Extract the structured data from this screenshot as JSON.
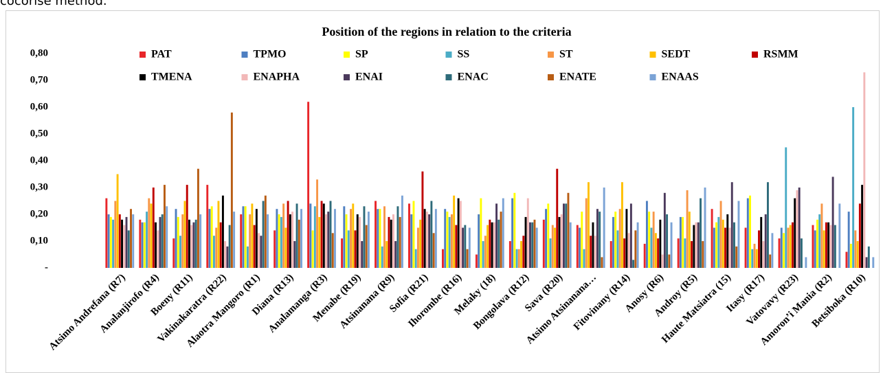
{
  "caption_fragment": "cocorise method.",
  "chart_data": {
    "type": "bar",
    "title": "Position of the regions in relation to the criteria",
    "categories": [
      "Atsimo Andrefana (R7)",
      "Analanjirofo (R4)",
      "Boeny (R11)",
      "Vakinakaratra (R22)",
      "Alaotra Mangoro (R1)",
      "Diana (R13)",
      "Analamanga (R3)",
      "Menabe (R19)",
      "Atsinanana (R9)",
      "Sofia (R21)",
      "Ihorombe (R16)",
      "Melaky (18)",
      "Bongolava (R12)",
      "Sava (R20)",
      "Atsimo Atsinanana…",
      "Fitovinany (R14)",
      "Anosy (R6)",
      "Androy (R5)",
      "Haute Matsiatra (15)",
      "Itasy (R17)",
      "Vatovavy (R23)",
      "Amoron’i Mania (R2)",
      "Betsiboka (R10)"
    ],
    "series": [
      {
        "name": "PAT",
        "color": "#e8262a",
        "values": [
          0.26,
          0.18,
          0.11,
          0.31,
          0.2,
          0.14,
          0.62,
          0.11,
          0.25,
          0.24,
          0.07,
          0.05,
          0.1,
          0.18,
          0.16,
          0.1,
          0.09,
          0.11,
          0.22,
          0.15,
          0.11,
          0.16,
          0.06
        ]
      },
      {
        "name": "TPMO",
        "color": "#4e7fc1",
        "values": [
          0.2,
          0.17,
          0.22,
          0.22,
          0.23,
          0.22,
          0.24,
          0.23,
          0.22,
          0.2,
          0.22,
          0.2,
          0.26,
          0.22,
          0.15,
          0.19,
          0.25,
          0.19,
          0.15,
          0.26,
          0.15,
          0.14,
          0.21
        ]
      },
      {
        "name": "SP",
        "color": "#ffff00",
        "values": [
          0.19,
          0.17,
          0.19,
          0.23,
          0.23,
          0.2,
          0.14,
          0.2,
          0.22,
          0.25,
          0.21,
          0.26,
          0.28,
          0.24,
          0.21,
          0.21,
          0.21,
          0.19,
          0.17,
          0.27,
          0.13,
          0.18,
          0.09
        ]
      },
      {
        "name": "SS",
        "color": "#4bacc6",
        "values": [
          0.18,
          0.21,
          0.12,
          0.12,
          0.08,
          0.19,
          0.23,
          0.14,
          0.08,
          0.07,
          0.19,
          0.1,
          0.07,
          0.11,
          0.07,
          0.14,
          0.15,
          0.11,
          0.19,
          0.07,
          0.45,
          0.2,
          0.6
        ]
      },
      {
        "name": "ST",
        "color": "#f79646",
        "values": [
          0.25,
          0.26,
          0.2,
          0.15,
          0.2,
          0.24,
          0.33,
          0.22,
          0.23,
          0.15,
          0.2,
          0.12,
          0.07,
          0.16,
          0.26,
          0.22,
          0.21,
          0.29,
          0.25,
          0.09,
          0.15,
          0.24,
          0.14
        ]
      },
      {
        "name": "SEDT",
        "color": "#ffc000",
        "values": [
          0.35,
          0.24,
          0.25,
          0.25,
          0.24,
          0.15,
          0.19,
          0.24,
          0.1,
          0.18,
          0.27,
          0.16,
          0.1,
          0.15,
          0.32,
          0.32,
          0.13,
          0.21,
          0.18,
          0.07,
          0.16,
          0.14,
          0.1
        ]
      },
      {
        "name": "RSMM",
        "color": "#c00000",
        "values": [
          0.2,
          0.3,
          0.31,
          0.17,
          0.16,
          0.25,
          0.25,
          0.14,
          0.19,
          0.36,
          0.16,
          0.18,
          0.12,
          0.37,
          0.12,
          0.11,
          0.11,
          0.1,
          0.15,
          0.14,
          0.17,
          0.17,
          0.24
        ]
      },
      {
        "name": "TMENA",
        "color": "#000000",
        "values": [
          0.18,
          0.17,
          0.18,
          0.27,
          0.22,
          0.2,
          0.24,
          0.2,
          0.18,
          0.22,
          0.26,
          0.17,
          0.19,
          0.19,
          0.17,
          0.22,
          0.18,
          0.16,
          0.2,
          0.19,
          0.26,
          0.17,
          0.31
        ]
      },
      {
        "name": "ENAPHA",
        "color": "#f2b8b8",
        "values": [
          0.16,
          0.14,
          0.16,
          0.1,
          0.13,
          0.21,
          0.2,
          0.19,
          0.2,
          0.21,
          0.25,
          0.17,
          0.26,
          0.2,
          0.12,
          0.13,
          0.05,
          0.17,
          0.15,
          0.1,
          0.29,
          0.16,
          0.73
        ]
      },
      {
        "name": "ENAI",
        "color": "#4b3a5c",
        "values": [
          0.19,
          0.19,
          0.17,
          0.08,
          0.12,
          0.1,
          0.21,
          0.1,
          0.1,
          0.2,
          0.15,
          0.24,
          0.17,
          0.24,
          0.22,
          0.24,
          0.28,
          0.17,
          0.32,
          0.2,
          0.3,
          0.34,
          0.04
        ]
      },
      {
        "name": "ENAC",
        "color": "#2e6b7a",
        "values": [
          0.14,
          0.2,
          0.18,
          0.16,
          0.25,
          0.24,
          0.25,
          0.23,
          0.23,
          0.25,
          0.16,
          0.18,
          0.17,
          0.24,
          0.21,
          0.03,
          0.2,
          0.26,
          0.17,
          0.32,
          0.11,
          0.16,
          0.08
        ]
      },
      {
        "name": "ENATE",
        "color": "#b85d14",
        "values": [
          0.22,
          0.31,
          0.37,
          0.58,
          0.27,
          0.18,
          0.13,
          0.16,
          0.19,
          0.13,
          0.07,
          0.21,
          0.18,
          0.28,
          0.04,
          0.14,
          0.05,
          0.1,
          0.08,
          0.05,
          0.0,
          0.0,
          0.0
        ]
      },
      {
        "name": "ENAAS",
        "color": "#7ba3d6",
        "values": [
          0.2,
          0.23,
          0.2,
          0.21,
          0.2,
          0.22,
          0.22,
          0.21,
          0.27,
          0.22,
          0.15,
          0.26,
          0.15,
          0.17,
          0.3,
          0.17,
          0.17,
          0.3,
          0.25,
          0.13,
          0.04,
          0.24,
          0.04
        ]
      }
    ],
    "ylim": [
      0,
      0.8
    ],
    "yticks": [
      {
        "value": 0,
        "label": "-"
      },
      {
        "value": 0.1,
        "label": "0,10"
      },
      {
        "value": 0.2,
        "label": "0,20"
      },
      {
        "value": 0.3,
        "label": "0,30"
      },
      {
        "value": 0.4,
        "label": "0,40"
      },
      {
        "value": 0.5,
        "label": "0,50"
      },
      {
        "value": 0.6,
        "label": "0,60"
      },
      {
        "value": 0.7,
        "label": "0,70"
      },
      {
        "value": 0.8,
        "label": "0,80"
      }
    ],
    "grid": false,
    "legend": "top"
  }
}
